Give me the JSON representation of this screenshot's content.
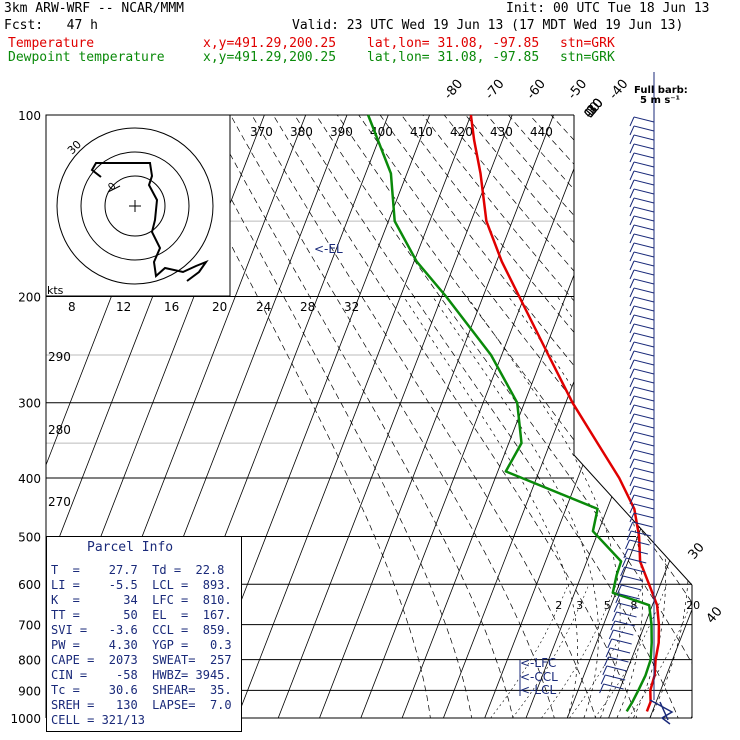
{
  "header": {
    "model": "3km ARW-WRF -- NCAR/MMM",
    "init": "Init: 00 UTC Tue 18 Jun 13",
    "fcst": "Fcst:   47 h",
    "valid": "Valid: 23 UTC Wed 19 Jun 13 (17 MDT Wed 19 Jun 13)",
    "temp_label": "Temperature",
    "dew_label": "Dewpoint temperature",
    "xy": "x,y=491.29,200.25",
    "latlon": "lat,lon= 31.08, -97.85",
    "stn": "stn=GRK"
  },
  "barb_header": {
    "line1": "Full barb:",
    "line2": "5 m s⁻¹"
  },
  "hodograph": {
    "kts_label": "kts",
    "speed_ticks": [
      "8",
      "12",
      "16",
      "20",
      "24",
      "28",
      "32"
    ],
    "ring_label": "30",
    "ring_label2": "0"
  },
  "chart_data": {
    "type": "skew-t",
    "title": "",
    "y_axis": {
      "scale": "log-pressure",
      "unit": "hPa",
      "ticks": [
        100,
        200,
        300,
        400,
        500,
        600,
        700,
        800,
        900,
        1000
      ]
    },
    "isotherm_labels": [
      "-80",
      "-70",
      "-60",
      "-50",
      "-40",
      "-30",
      "-20",
      "-10",
      "0",
      "10",
      "20",
      "30",
      "40"
    ],
    "theta_labels": [
      "370",
      "380",
      "390",
      "400",
      "410",
      "420",
      "430",
      "440",
      "290",
      "280",
      "270"
    ],
    "mixing_ratio_labels": [
      "2",
      "3",
      "5",
      "8",
      "20"
    ],
    "levels": [
      "<-EL",
      "<-LFC",
      "<-CCL",
      "<-LCL"
    ],
    "series": [
      {
        "name": "Temperature",
        "color": "#e00000",
        "points": [
          {
            "p": 100,
            "t": -70.0
          },
          {
            "p": 110,
            "t": -68.6
          },
          {
            "p": 125,
            "t": -66.1
          },
          {
            "p": 150,
            "t": -63.1
          },
          {
            "p": 175,
            "t": -57.8
          },
          {
            "p": 200,
            "t": -52.0
          },
          {
            "p": 250,
            "t": -41.8
          },
          {
            "p": 300,
            "t": -32.8
          },
          {
            "p": 350,
            "t": -23.6
          },
          {
            "p": 400,
            "t": -15.2
          },
          {
            "p": 450,
            "t": -8.4
          },
          {
            "p": 500,
            "t": -4.1
          },
          {
            "p": 550,
            "t": -0.7
          },
          {
            "p": 600,
            "t": 4.6
          },
          {
            "p": 650,
            "t": 9.7
          },
          {
            "p": 700,
            "t": 13.3
          },
          {
            "p": 750,
            "t": 16.4
          },
          {
            "p": 800,
            "t": 18.8
          },
          {
            "p": 850,
            "t": 21.7
          },
          {
            "p": 900,
            "t": 23.8
          },
          {
            "p": 940,
            "t": 26.4
          },
          {
            "p": 975,
            "t": 27.7
          }
        ]
      },
      {
        "name": "Dewpoint temperature",
        "color": "#0a8a0a",
        "points": [
          {
            "p": 100,
            "t": -94.9
          },
          {
            "p": 125,
            "t": -87.8
          },
          {
            "p": 150,
            "t": -85.3
          },
          {
            "p": 175,
            "t": -78.4
          },
          {
            "p": 200,
            "t": -69.7
          },
          {
            "p": 250,
            "t": -55.7
          },
          {
            "p": 300,
            "t": -46.2
          },
          {
            "p": 350,
            "t": -42.0
          },
          {
            "p": 390,
            "t": -43.3
          },
          {
            "p": 450,
            "t": -17.3
          },
          {
            "p": 490,
            "t": -15.9
          },
          {
            "p": 550,
            "t": -5.3
          },
          {
            "p": 580,
            "t": -4.5
          },
          {
            "p": 620,
            "t": -2.9
          },
          {
            "p": 650,
            "t": 7.8
          },
          {
            "p": 700,
            "t": 11.5
          },
          {
            "p": 750,
            "t": 14.7
          },
          {
            "p": 800,
            "t": 17.6
          },
          {
            "p": 850,
            "t": 19.5
          },
          {
            "p": 900,
            "t": 20.9
          },
          {
            "p": 940,
            "t": 22.0
          },
          {
            "p": 975,
            "t": 22.8
          }
        ]
      }
    ]
  },
  "parcel_info": {
    "title": "Parcel Info",
    "rows": [
      "T  =    27.7  Td =  22.8",
      "LI =    -5.5  LCL =  893.",
      "K  =      34  LFC =  810.",
      "TT =      50  EL  =  167.",
      "SVI =   -3.6  CCL =  859.",
      "PW =    4.30  YGP =   0.3",
      "CAPE =  2073  SWEAT=  257",
      "CIN =    -58  HWBZ= 3945.",
      "Tc =    30.6  SHEAR=  35.",
      "SREH =   130  LAPSE=  7.0",
      "CELL = 321/13"
    ]
  }
}
